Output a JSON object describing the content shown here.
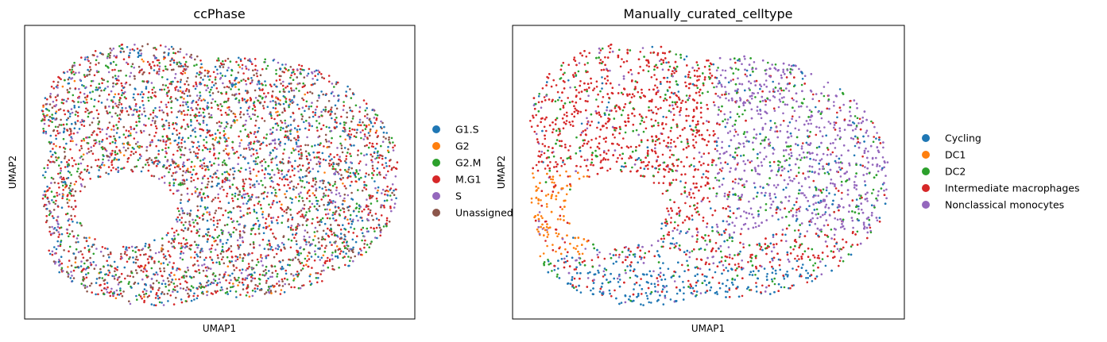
{
  "chart_data": [
    {
      "type": "scatter",
      "title": "ccPhase",
      "xlabel": "UMAP1",
      "ylabel": "UMAP2",
      "grid": false,
      "ticks": false,
      "legend_placement": "right, outside",
      "series": [
        {
          "name": "G1.S",
          "color": "#1f77b4",
          "weight": 0.18
        },
        {
          "name": "G2",
          "color": "#ff7f0e",
          "weight": 0.03
        },
        {
          "name": "G2.M",
          "color": "#2ca02c",
          "weight": 0.15
        },
        {
          "name": "M.G1",
          "color": "#d62728",
          "weight": 0.3
        },
        {
          "name": "S",
          "color": "#9467bd",
          "weight": 0.14
        },
        {
          "name": "Unassigned",
          "color": "#8c564b",
          "weight": 0.2
        }
      ],
      "point_count": 4200
    },
    {
      "type": "scatter",
      "title": "Manually_curated_celltype",
      "xlabel": "UMAP1",
      "ylabel": "UMAP2",
      "grid": false,
      "ticks": false,
      "legend_placement": "right, outside",
      "series": [
        {
          "name": "Cycling",
          "color": "#1f77b4",
          "region": "bottom edge"
        },
        {
          "name": "DC1",
          "color": "#ff7f0e",
          "region": "left lobe"
        },
        {
          "name": "DC2",
          "color": "#2ca02c",
          "region": "center, scattered"
        },
        {
          "name": "Intermediate macrophages",
          "color": "#d62728",
          "region": "left and top"
        },
        {
          "name": "Nonclassical monocytes",
          "color": "#9467bd",
          "region": "upper right"
        }
      ],
      "point_count": 4200
    }
  ]
}
